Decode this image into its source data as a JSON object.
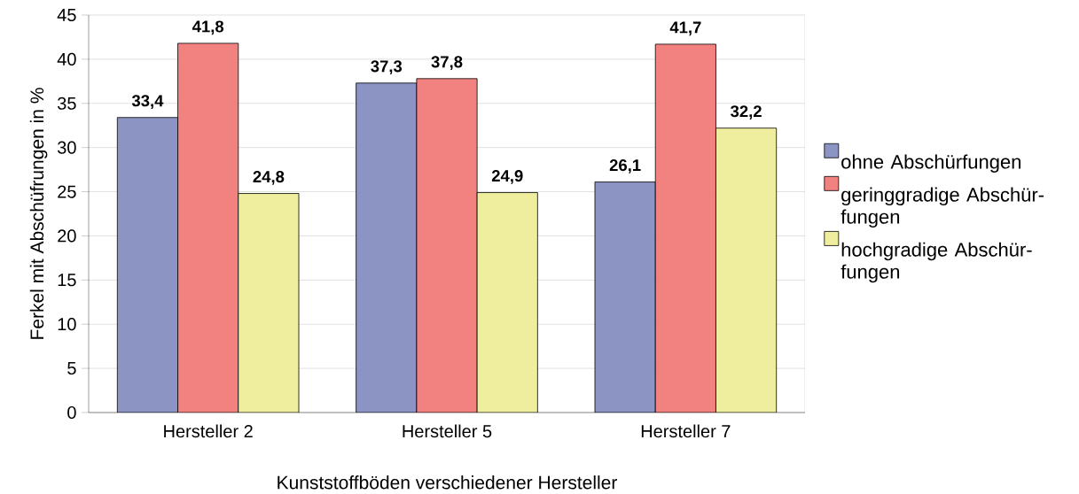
{
  "chart_data": {
    "type": "bar",
    "categories": [
      "Hersteller 2",
      "Hersteller 5",
      "Hersteller 7"
    ],
    "xlabel": "Kunststoffböden verschiedener Hersteller",
    "ylabel": "Ferkel mit Abschüfrungen in %",
    "ylim": [
      0,
      45
    ],
    "yticks": [
      0,
      5,
      10,
      15,
      20,
      25,
      30,
      35,
      40,
      45
    ],
    "grid": "y",
    "legend": "right",
    "series": [
      {
        "name": "ohne Abschürfungen",
        "color": "#8c94c4",
        "values": [
          33.4,
          37.3,
          26.1
        ],
        "value_labels": [
          "33,4",
          "37,3",
          "26,1"
        ]
      },
      {
        "name": "geringgradige Abschür-fungen",
        "color": "#f28280",
        "values": [
          41.8,
          37.8,
          41.7
        ],
        "value_labels": [
          "41,8",
          "37,8",
          "41,7"
        ]
      },
      {
        "name": "hochgradige Abschür-fungen",
        "color": "#eeee9e",
        "values": [
          24.8,
          24.9,
          32.2
        ],
        "value_labels": [
          "24,8",
          "24,9",
          "32,2"
        ]
      }
    ]
  }
}
